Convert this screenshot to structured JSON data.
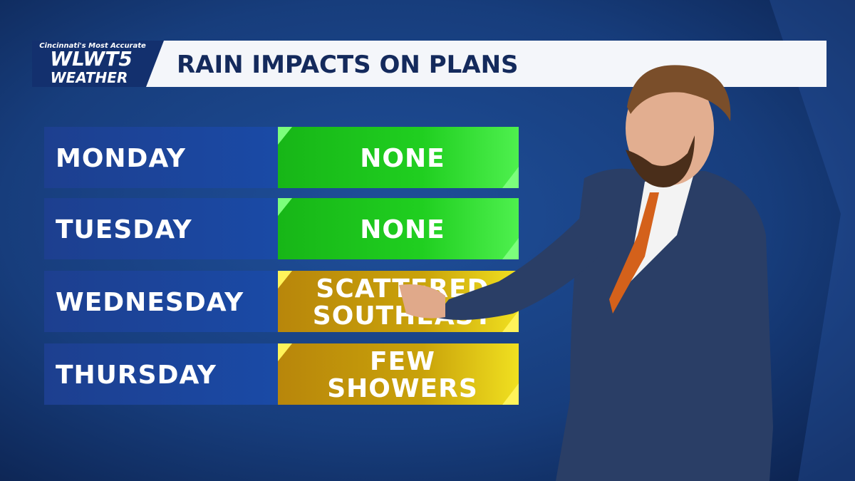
{
  "logo": {
    "tagline": "Cincinnati's Most Accurate",
    "brand": "WLWT5",
    "sub": "WEATHER"
  },
  "header": {
    "title": "RAIN IMPACTS ON PLANS"
  },
  "table": {
    "rows": [
      {
        "day": "MONDAY",
        "impact": [
          "NONE"
        ],
        "color": "#1fd01f"
      },
      {
        "day": "TUESDAY",
        "impact": [
          "NONE"
        ],
        "color": "#1fd01f"
      },
      {
        "day": "WEDNESDAY",
        "impact": [
          "SCATTERED",
          "SOUTHEAST"
        ],
        "color": "#c9a20a"
      },
      {
        "day": "THURSDAY",
        "impact": [
          "FEW",
          "SHOWERS"
        ],
        "color": "#c9a20a"
      }
    ]
  }
}
